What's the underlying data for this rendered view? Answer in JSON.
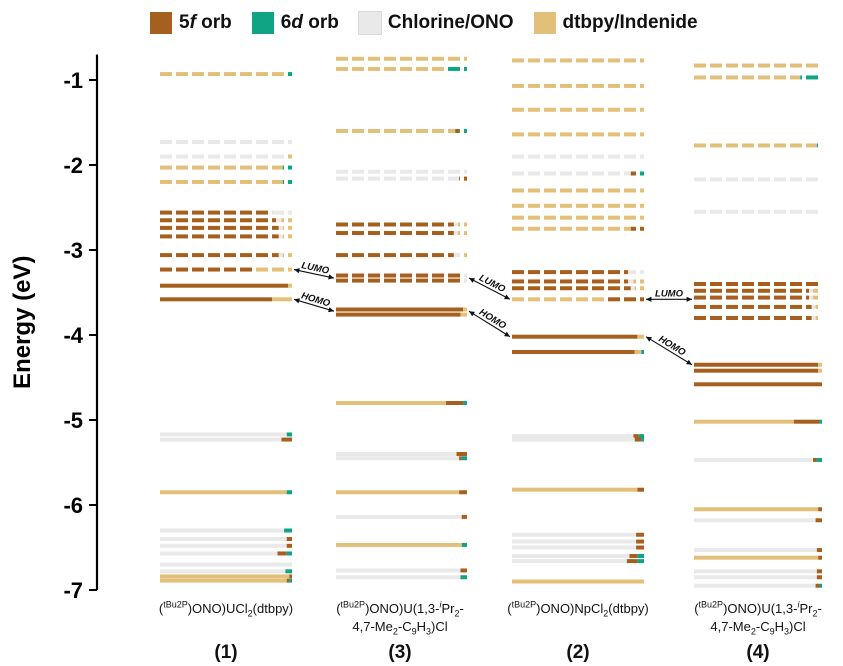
{
  "chart_data": {
    "type": "energy_level_diagram",
    "ylabel": "Energy (eV)",
    "ylim": [
      -7,
      -0.7
    ],
    "yticks": [
      -1,
      -2,
      -3,
      -4,
      -5,
      -6,
      -7
    ],
    "legend": [
      {
        "name": "5f orb",
        "color": "#a5601f"
      },
      {
        "name": "6d orb",
        "color": "#10a484"
      },
      {
        "name": "Chlorine/ONO",
        "color": "#e9e9e9"
      },
      {
        "name": "dtbpy/Indenide",
        "color": "#e3c07a"
      }
    ],
    "columns": [
      {
        "number": "(1)",
        "label": "(tBu2P)ONO)UCl2(dtbpy)",
        "homo": -3.58,
        "lumo": -3.23,
        "levels": [
          {
            "e": -0.93,
            "style": "dashed",
            "f": 0.0,
            "d": 0.06,
            "c": 0.0,
            "l": 0.94
          },
          {
            "e": -1.73,
            "style": "dashed",
            "f": 0.0,
            "d": 0.0,
            "c": 1.0,
            "l": 0.0
          },
          {
            "e": -1.9,
            "style": "dashed",
            "f": 0.0,
            "d": 0.0,
            "c": 0.95,
            "l": 0.05
          },
          {
            "e": -2.03,
            "style": "dashed",
            "f": 0.0,
            "d": 0.07,
            "c": 0.0,
            "l": 0.93
          },
          {
            "e": -2.2,
            "style": "dashed",
            "f": 0.0,
            "d": 0.07,
            "c": 0.0,
            "l": 0.93
          },
          {
            "e": -2.56,
            "style": "dashed",
            "f": 0.85,
            "d": 0.0,
            "c": 0.15,
            "l": 0.0
          },
          {
            "e": -2.65,
            "style": "dashed",
            "f": 0.88,
            "d": 0.0,
            "c": 0.04,
            "l": 0.08
          },
          {
            "e": -2.74,
            "style": "dashed",
            "f": 0.9,
            "d": 0.0,
            "c": 0.03,
            "l": 0.07
          },
          {
            "e": -2.84,
            "style": "dashed",
            "f": 0.9,
            "d": 0.0,
            "c": 0.03,
            "l": 0.07
          },
          {
            "e": -3.06,
            "style": "dashed",
            "f": 0.9,
            "d": 0.0,
            "c": 0.03,
            "l": 0.07
          },
          {
            "e": -3.23,
            "style": "dashed",
            "f": 0.7,
            "d": 0.0,
            "c": 0.0,
            "l": 0.3
          },
          {
            "e": -3.42,
            "style": "solid",
            "f": 0.97,
            "d": 0.0,
            "c": 0.0,
            "l": 0.03
          },
          {
            "e": -3.58,
            "style": "solid",
            "f": 0.85,
            "d": 0.0,
            "c": 0.0,
            "l": 0.15
          },
          {
            "e": -5.17,
            "style": "solid",
            "f": 0.0,
            "d": 0.04,
            "c": 0.96,
            "l": 0.0
          },
          {
            "e": -5.23,
            "style": "solid",
            "f": 0.08,
            "d": 0.0,
            "c": 0.92,
            "l": 0.0
          },
          {
            "e": -5.85,
            "style": "solid",
            "f": 0.0,
            "d": 0.04,
            "c": 0.0,
            "l": 0.96
          },
          {
            "e": -6.3,
            "style": "solid",
            "f": 0.0,
            "d": 0.06,
            "c": 0.94,
            "l": 0.0
          },
          {
            "e": -6.4,
            "style": "solid",
            "f": 0.04,
            "d": 0.0,
            "c": 0.96,
            "l": 0.0
          },
          {
            "e": -6.48,
            "style": "solid",
            "f": 0.04,
            "d": 0.0,
            "c": 0.96,
            "l": 0.0
          },
          {
            "e": -6.57,
            "style": "solid",
            "f": 0.07,
            "d": 0.04,
            "c": 0.89,
            "l": 0.0
          },
          {
            "e": -6.7,
            "style": "solid",
            "f": 0.0,
            "d": 0.0,
            "c": 1.0,
            "l": 0.0
          },
          {
            "e": -6.78,
            "style": "solid",
            "f": 0.0,
            "d": 0.05,
            "c": 0.95,
            "l": 0.0
          },
          {
            "e": -6.84,
            "style": "solid",
            "f": 0.02,
            "d": 0.0,
            "c": 0.0,
            "l": 0.98
          },
          {
            "e": -6.89,
            "style": "solid",
            "f": 0.02,
            "d": 0.02,
            "c": 0.0,
            "l": 0.96
          }
        ]
      },
      {
        "number": "(3)",
        "label": "(tBu2P)ONO)U(1,3-iPr2-4,7-Me2-C9H3)Cl",
        "homo": -3.72,
        "lumo": -3.33,
        "levels": [
          {
            "e": -0.75,
            "style": "dashed",
            "f": 0.0,
            "d": 0.0,
            "c": 0.0,
            "l": 1.0
          },
          {
            "e": -0.87,
            "style": "dashed",
            "f": 0.0,
            "d": 0.17,
            "c": 0.0,
            "l": 0.83
          },
          {
            "e": -1.6,
            "style": "dashed",
            "f": 0.03,
            "d": 0.06,
            "c": 0.0,
            "l": 0.91
          },
          {
            "e": -2.08,
            "style": "dashed",
            "f": 0.0,
            "d": 0.0,
            "c": 1.0,
            "l": 0.0
          },
          {
            "e": -2.16,
            "style": "dashed",
            "f": 0.06,
            "d": 0.0,
            "c": 0.94,
            "l": 0.0
          },
          {
            "e": -2.7,
            "style": "dashed",
            "f": 0.9,
            "d": 0.0,
            "c": 0.03,
            "l": 0.07
          },
          {
            "e": -2.8,
            "style": "dashed",
            "f": 0.9,
            "d": 0.0,
            "c": 0.03,
            "l": 0.07
          },
          {
            "e": -3.06,
            "style": "dashed",
            "f": 0.9,
            "d": 0.0,
            "c": 0.05,
            "l": 0.05
          },
          {
            "e": -3.3,
            "style": "dashed",
            "f": 0.95,
            "d": 0.0,
            "c": 0.05,
            "l": 0.0
          },
          {
            "e": -3.36,
            "style": "dashed",
            "f": 0.95,
            "d": 0.0,
            "c": 0.05,
            "l": 0.0
          },
          {
            "e": -3.7,
            "style": "solid",
            "f": 0.97,
            "d": 0.0,
            "c": 0.0,
            "l": 0.03
          },
          {
            "e": -3.76,
            "style": "solid",
            "f": 0.95,
            "d": 0.0,
            "c": 0.0,
            "l": 0.05
          },
          {
            "e": -4.8,
            "style": "solid",
            "f": 0.13,
            "d": 0.03,
            "c": 0.0,
            "l": 0.84
          },
          {
            "e": -5.4,
            "style": "solid",
            "f": 0.08,
            "d": 0.0,
            "c": 0.92,
            "l": 0.0
          },
          {
            "e": -5.45,
            "style": "solid",
            "f": 0.02,
            "d": 0.04,
            "c": 0.94,
            "l": 0.0
          },
          {
            "e": -5.85,
            "style": "solid",
            "f": 0.06,
            "d": 0.0,
            "c": 0.0,
            "l": 0.94
          },
          {
            "e": -6.14,
            "style": "solid",
            "f": 0.04,
            "d": 0.0,
            "c": 0.96,
            "l": 0.0
          },
          {
            "e": -6.47,
            "style": "solid",
            "f": 0.0,
            "d": 0.04,
            "c": 0.0,
            "l": 0.96
          },
          {
            "e": -6.77,
            "style": "solid",
            "f": 0.05,
            "d": 0.0,
            "c": 0.95,
            "l": 0.0
          },
          {
            "e": -6.85,
            "style": "solid",
            "f": 0.0,
            "d": 0.05,
            "c": 0.95,
            "l": 0.0
          }
        ]
      },
      {
        "number": "(2)",
        "label": "(tBu2P)ONO)NpCl2(dtbpy)",
        "homo": -4.02,
        "lumo": -3.58,
        "levels": [
          {
            "e": -0.77,
            "style": "dashed",
            "f": 0.0,
            "d": 0.0,
            "c": 0.0,
            "l": 1.0
          },
          {
            "e": -1.07,
            "style": "dashed",
            "f": 0.0,
            "d": 0.0,
            "c": 0.0,
            "l": 1.0
          },
          {
            "e": -1.35,
            "style": "dashed",
            "f": 0.0,
            "d": 0.0,
            "c": 0.0,
            "l": 1.0
          },
          {
            "e": -1.64,
            "style": "dashed",
            "f": 0.0,
            "d": 0.0,
            "c": 0.0,
            "l": 1.0
          },
          {
            "e": -1.9,
            "style": "dashed",
            "f": 0.0,
            "d": 0.0,
            "c": 1.0,
            "l": 0.0
          },
          {
            "e": -2.1,
            "style": "dashed",
            "f": 0.05,
            "d": 0.05,
            "c": 0.9,
            "l": 0.0
          },
          {
            "e": -2.3,
            "style": "dashed",
            "f": 0.0,
            "d": 0.0,
            "c": 0.0,
            "l": 1.0
          },
          {
            "e": -2.48,
            "style": "dashed",
            "f": 0.0,
            "d": 0.0,
            "c": 0.0,
            "l": 1.0
          },
          {
            "e": -2.62,
            "style": "dashed",
            "f": 0.0,
            "d": 0.0,
            "c": 0.0,
            "l": 1.0
          },
          {
            "e": -2.75,
            "style": "dashed",
            "f": 0.1,
            "d": 0.0,
            "c": 0.0,
            "l": 0.9
          },
          {
            "e": -3.26,
            "style": "dashed",
            "f": 0.88,
            "d": 0.0,
            "c": 0.12,
            "l": 0.0
          },
          {
            "e": -3.37,
            "style": "dashed",
            "f": 0.88,
            "d": 0.0,
            "c": 0.04,
            "l": 0.08
          },
          {
            "e": -3.45,
            "style": "dashed",
            "f": 0.9,
            "d": 0.0,
            "c": 0.03,
            "l": 0.07
          },
          {
            "e": -3.58,
            "style": "dashed",
            "f": 0.3,
            "d": 0.0,
            "c": 0.0,
            "l": 0.7
          },
          {
            "e": -4.02,
            "style": "solid",
            "f": 0.95,
            "d": 0.0,
            "c": 0.0,
            "l": 0.05
          },
          {
            "e": -4.2,
            "style": "solid",
            "f": 0.93,
            "d": 0.02,
            "c": 0.0,
            "l": 0.05
          },
          {
            "e": -5.19,
            "style": "solid",
            "f": 0.04,
            "d": 0.04,
            "c": 0.92,
            "l": 0.0
          },
          {
            "e": -5.23,
            "style": "solid",
            "f": 0.05,
            "d": 0.02,
            "c": 0.93,
            "l": 0.0
          },
          {
            "e": -5.82,
            "style": "solid",
            "f": 0.05,
            "d": 0.0,
            "c": 0.0,
            "l": 0.95
          },
          {
            "e": -6.35,
            "style": "solid",
            "f": 0.06,
            "d": 0.0,
            "c": 0.94,
            "l": 0.0
          },
          {
            "e": -6.43,
            "style": "solid",
            "f": 0.06,
            "d": 0.0,
            "c": 0.94,
            "l": 0.0
          },
          {
            "e": -6.5,
            "style": "solid",
            "f": 0.06,
            "d": 0.0,
            "c": 0.94,
            "l": 0.0
          },
          {
            "e": -6.6,
            "style": "solid",
            "f": 0.06,
            "d": 0.05,
            "c": 0.89,
            "l": 0.0
          },
          {
            "e": -6.66,
            "style": "solid",
            "f": 0.08,
            "d": 0.05,
            "c": 0.87,
            "l": 0.0
          },
          {
            "e": -6.9,
            "style": "solid",
            "f": 0.0,
            "d": 0.0,
            "c": 0.0,
            "l": 1.0
          }
        ]
      },
      {
        "number": "(4)",
        "label": "(tBu2P)ONO)U(1,3-iPr2-4,7-Me2-C9H3)Cl",
        "homo": -4.35,
        "lumo": -3.58,
        "levels": [
          {
            "e": -0.83,
            "style": "dashed",
            "f": 0.0,
            "d": 0.0,
            "c": 0.0,
            "l": 1.0
          },
          {
            "e": -0.97,
            "style": "dashed",
            "f": 0.0,
            "d": 0.17,
            "c": 0.0,
            "l": 0.83
          },
          {
            "e": -1.77,
            "style": "dashed",
            "f": 0.0,
            "d": 0.04,
            "c": 0.0,
            "l": 0.96
          },
          {
            "e": -2.17,
            "style": "dashed",
            "f": 0.0,
            "d": 0.0,
            "c": 1.0,
            "l": 0.0
          },
          {
            "e": -2.55,
            "style": "dashed",
            "f": 0.02,
            "d": 0.0,
            "c": 0.98,
            "l": 0.0
          },
          {
            "e": -3.4,
            "style": "dashed",
            "f": 0.97,
            "d": 0.0,
            "c": 0.0,
            "l": 0.03
          },
          {
            "e": -3.48,
            "style": "dashed",
            "f": 0.9,
            "d": 0.0,
            "c": 0.03,
            "l": 0.07
          },
          {
            "e": -3.56,
            "style": "dashed",
            "f": 0.9,
            "d": 0.0,
            "c": 0.03,
            "l": 0.07
          },
          {
            "e": -3.67,
            "style": "dashed",
            "f": 0.92,
            "d": 0.0,
            "c": 0.03,
            "l": 0.05
          },
          {
            "e": -3.8,
            "style": "dashed",
            "f": 0.92,
            "d": 0.0,
            "c": 0.03,
            "l": 0.05
          },
          {
            "e": -4.35,
            "style": "solid",
            "f": 0.97,
            "d": 0.0,
            "c": 0.0,
            "l": 0.03
          },
          {
            "e": -4.42,
            "style": "solid",
            "f": 0.97,
            "d": 0.0,
            "c": 0.0,
            "l": 0.03
          },
          {
            "e": -4.58,
            "style": "solid",
            "f": 1.0,
            "d": 0.0,
            "c": 0.0,
            "l": 0.0
          },
          {
            "e": -5.02,
            "style": "solid",
            "f": 0.2,
            "d": 0.02,
            "c": 0.0,
            "l": 0.78
          },
          {
            "e": -5.47,
            "style": "solid",
            "f": 0.03,
            "d": 0.04,
            "c": 0.93,
            "l": 0.0
          },
          {
            "e": -6.05,
            "style": "solid",
            "f": 0.03,
            "d": 0.0,
            "c": 0.0,
            "l": 0.97
          },
          {
            "e": -6.18,
            "style": "solid",
            "f": 0.05,
            "d": 0.0,
            "c": 0.95,
            "l": 0.0
          },
          {
            "e": -6.53,
            "style": "solid",
            "f": 0.04,
            "d": 0.0,
            "c": 0.96,
            "l": 0.0
          },
          {
            "e": -6.62,
            "style": "solid",
            "f": 0.03,
            "d": 0.0,
            "c": 0.0,
            "l": 0.97
          },
          {
            "e": -6.78,
            "style": "solid",
            "f": 0.04,
            "d": 0.0,
            "c": 0.96,
            "l": 0.0
          },
          {
            "e": -6.85,
            "style": "solid",
            "f": 0.04,
            "d": 0.0,
            "c": 0.96,
            "l": 0.0
          },
          {
            "e": -6.95,
            "style": "solid",
            "f": 0.03,
            "d": 0.02,
            "c": 0.95,
            "l": 0.0
          }
        ]
      }
    ],
    "annotations": {
      "lumo": "LUMO",
      "homo": "HOMO"
    }
  }
}
